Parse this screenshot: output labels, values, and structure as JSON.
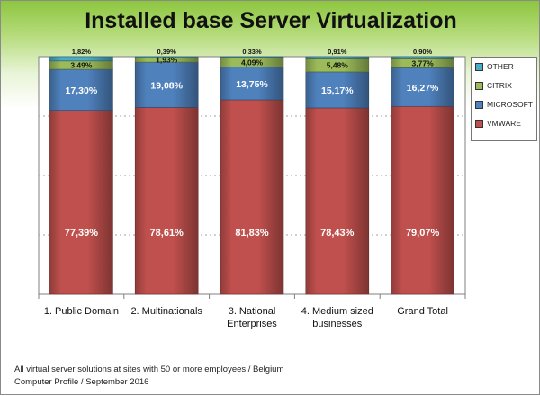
{
  "chart_data": {
    "type": "bar",
    "stacked": true,
    "normalized_percent": true,
    "title": "Installed base Server Virtualization",
    "categories": [
      "1. Public Domain",
      "2. Multinationals",
      "3. National Enterprises",
      "4. Medium sized businesses",
      "Grand Total"
    ],
    "series": [
      {
        "name": "VMWARE",
        "values": [
          77.39,
          78.61,
          81.83,
          78.43,
          79.07
        ],
        "labels": [
          "77,39%",
          "78,61%",
          "81,83%",
          "78,43%",
          "79,07%"
        ],
        "color": "#c0504d"
      },
      {
        "name": "MICROSOFT",
        "values": [
          17.3,
          19.08,
          13.75,
          15.17,
          16.27
        ],
        "labels": [
          "17,30%",
          "19,08%",
          "13,75%",
          "15,17%",
          "16,27%"
        ],
        "color": "#4f81bd"
      },
      {
        "name": "CITRIX",
        "values": [
          3.49,
          1.93,
          4.09,
          5.48,
          3.77
        ],
        "labels": [
          "3,49%",
          "1,93%",
          "4,09%",
          "5,48%",
          "3,77%"
        ],
        "color": "#9bbb59"
      },
      {
        "name": "OTHER",
        "values": [
          1.82,
          0.39,
          0.33,
          0.91,
          0.9
        ],
        "labels": [
          "1,82%",
          "0,39%",
          "0,33%",
          "0,91%",
          "0,90%"
        ],
        "color": "#4bacc6"
      }
    ],
    "ylim": [
      0,
      100
    ],
    "grid": true,
    "legend_position": "right",
    "legend_order": [
      "OTHER",
      "CITRIX",
      "MICROSOFT",
      "VMWARE"
    ]
  },
  "footer": {
    "line1": "All virtual server solutions at sites with 50 or more employees / Belgium",
    "line2": "Computer Profile / September 2016"
  }
}
